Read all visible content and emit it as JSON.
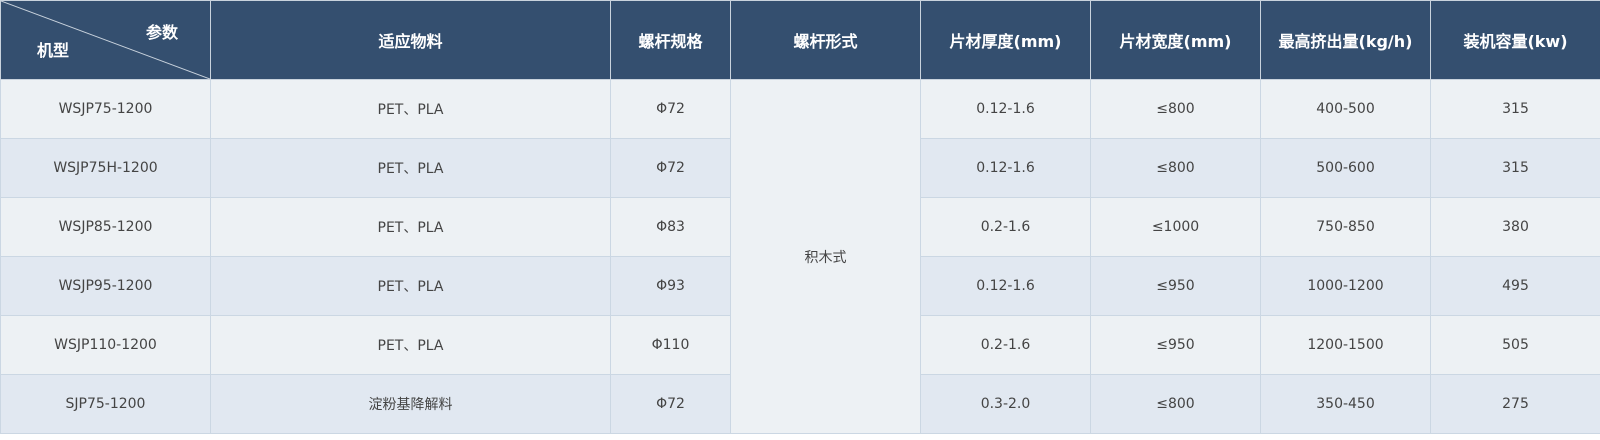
{
  "header": {
    "corner_top": "参数",
    "corner_bottom": "机型",
    "columns": [
      "适应物料",
      "螺杆规格",
      "螺杆形式",
      "片材厚度(mm)",
      "片材宽度(mm)",
      "最高挤出量(kg/h)",
      "装机容量(kw)"
    ]
  },
  "screw_type": "积木式",
  "rows": [
    {
      "model": "WSJP75-1200",
      "material": "PET、PLA",
      "screw": "Φ72",
      "thickness": "0.12-1.6",
      "width": "≤800",
      "output": "400-500",
      "power": "315"
    },
    {
      "model": "WSJP75H-1200",
      "material": "PET、PLA",
      "screw": "Φ72",
      "thickness": "0.12-1.6",
      "width": "≤800",
      "output": "500-600",
      "power": "315"
    },
    {
      "model": "WSJP85-1200",
      "material": "PET、PLA",
      "screw": "Φ83",
      "thickness": "0.2-1.6",
      "width": "≤1000",
      "output": "750-850",
      "power": "380"
    },
    {
      "model": "WSJP95-1200",
      "material": "PET、PLA",
      "screw": "Φ93",
      "thickness": "0.12-1.6",
      "width": "≤950",
      "output": "1000-1200",
      "power": "495"
    },
    {
      "model": "WSJP110-1200",
      "material": "PET、PLA",
      "screw": "Φ110",
      "thickness": "0.2-1.6",
      "width": "≤950",
      "output": "1200-1500",
      "power": "505"
    },
    {
      "model": "SJP75-1200",
      "material": "淀粉基降解料",
      "screw": "Φ72",
      "thickness": "0.3-2.0",
      "width": "≤800",
      "output": "350-450",
      "power": "275"
    }
  ]
}
